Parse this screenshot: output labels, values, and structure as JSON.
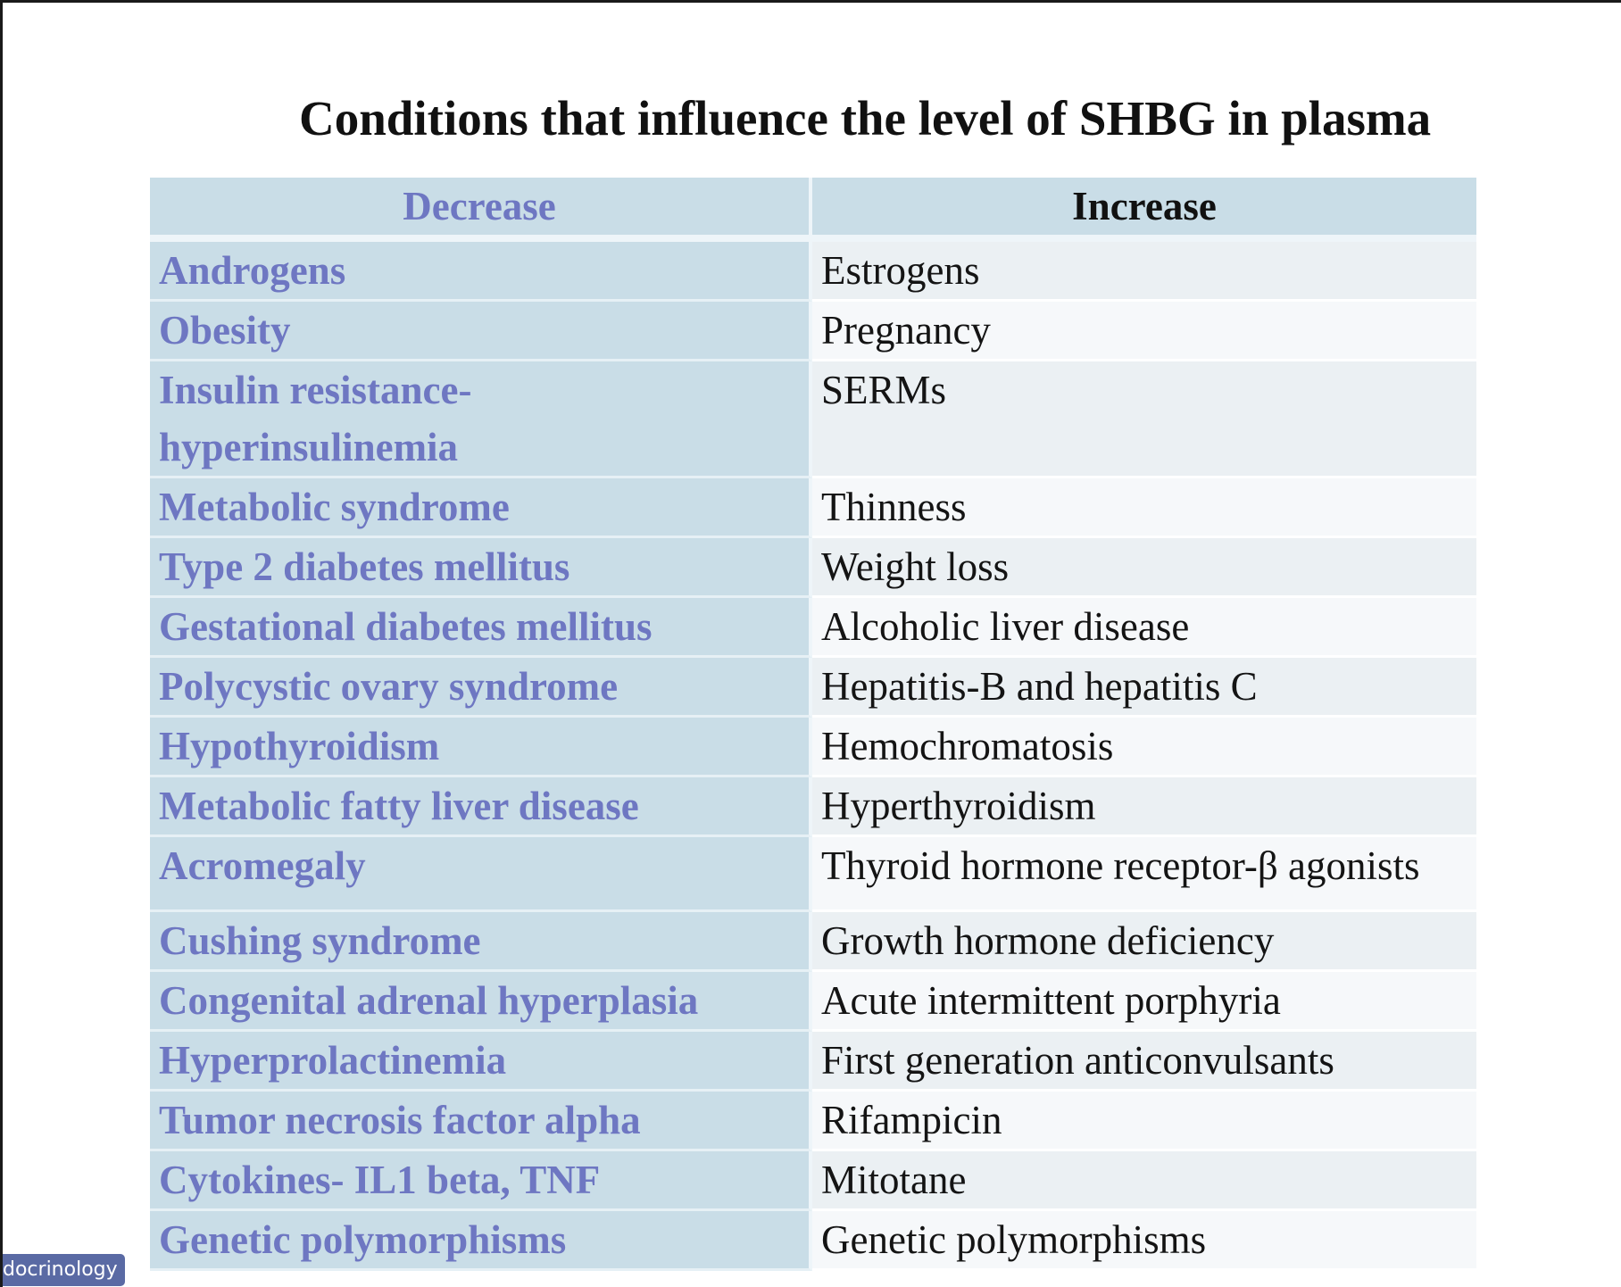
{
  "title": "Conditions that influence the level of SHBG in plasma",
  "table": {
    "headers": {
      "decrease": "Decrease",
      "increase": "Increase"
    },
    "rows": [
      {
        "decrease": "Androgens",
        "increase": "Estrogens"
      },
      {
        "decrease": "Obesity",
        "increase": "Pregnancy"
      },
      {
        "decrease": "Insulin resistance-\nhyperinsulinemia",
        "increase": "SERMs"
      },
      {
        "decrease": "Metabolic syndrome",
        "increase": "Thinness"
      },
      {
        "decrease": "Type 2 diabetes mellitus",
        "increase": "Weight loss"
      },
      {
        "decrease": "Gestational diabetes mellitus",
        "increase": "Alcoholic liver disease"
      },
      {
        "decrease": "Polycystic ovary syndrome",
        "increase": "Hepatitis-B and hepatitis C"
      },
      {
        "decrease": "Hypothyroidism",
        "increase": "Hemochromatosis"
      },
      {
        "decrease": "Metabolic fatty liver disease",
        "increase": "Hyperthyroidism"
      },
      {
        "decrease": "Acromegaly",
        "increase": "Thyroid hormone receptor-β agonists"
      },
      {
        "decrease": "Cushing syndrome",
        "increase": "Growth hormone deficiency"
      },
      {
        "decrease": "Congenital adrenal hyperplasia",
        "increase": "Acute intermittent porphyria"
      },
      {
        "decrease": "Hyperprolactinemia",
        "increase": "First generation anticonvulsants"
      },
      {
        "decrease": "Tumor necrosis factor alpha",
        "increase": "Rifampicin"
      },
      {
        "decrease": "Cytokines- IL1 beta, TNF",
        "increase": "Mitotane"
      },
      {
        "decrease": "Genetic polymorphisms",
        "increase": "Genetic polymorphisms"
      }
    ]
  },
  "badge": {
    "label": "docrinology"
  },
  "colors": {
    "decrease_text": "#6e77c2",
    "header_background": "#c9dde7",
    "increase_text": "#141414"
  }
}
